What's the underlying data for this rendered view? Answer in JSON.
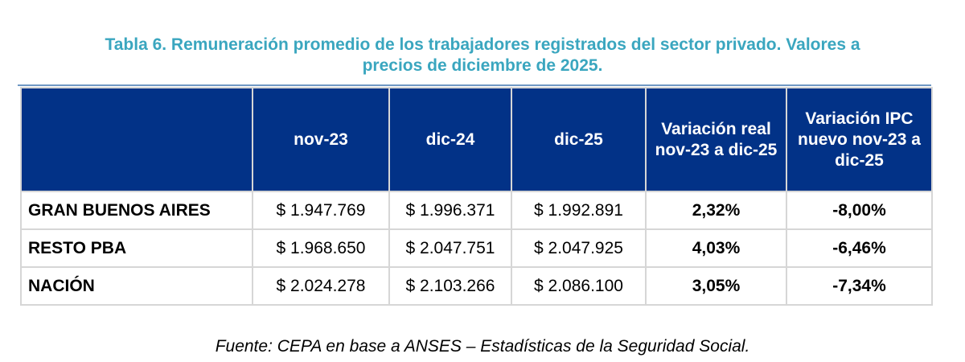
{
  "title": {
    "line1": "Tabla 6. Remuneración promedio de los trabajadores registrados del sector privado. Valores a",
    "line2": "precios de diciembre de 2025."
  },
  "table": {
    "headers": [
      "",
      "nov-23",
      "dic-24",
      "dic-25",
      "Variación real nov-23 a dic-25",
      "Variación IPC nuevo nov-23 a dic-25"
    ],
    "rows": [
      {
        "label": "GRAN BUENOS AIRES",
        "nov23": "$ 1.947.769",
        "dic24": "$ 1.996.371",
        "dic25": "$ 1.992.891",
        "var_real": "2,32%",
        "var_ipc": "-8,00%"
      },
      {
        "label": "RESTO PBA",
        "nov23": "$ 1.968.650",
        "dic24": "$ 2.047.751",
        "dic25": "$ 2.047.925",
        "var_real": "4,03%",
        "var_ipc": "-6,46%"
      },
      {
        "label": "NACIÓN",
        "nov23": "$ 2.024.278",
        "dic24": "$ 2.103.266",
        "dic25": "$ 2.086.100",
        "var_real": "3,05%",
        "var_ipc": "-7,34%"
      }
    ]
  },
  "footnote": "Fuente: CEPA en base a ANSES – Estadísticas de la Seguridad Social.",
  "colors": {
    "title": "#3aa6bf",
    "header_bg": "#023287",
    "header_text": "#ffffff",
    "border": "#d6d6d6"
  }
}
